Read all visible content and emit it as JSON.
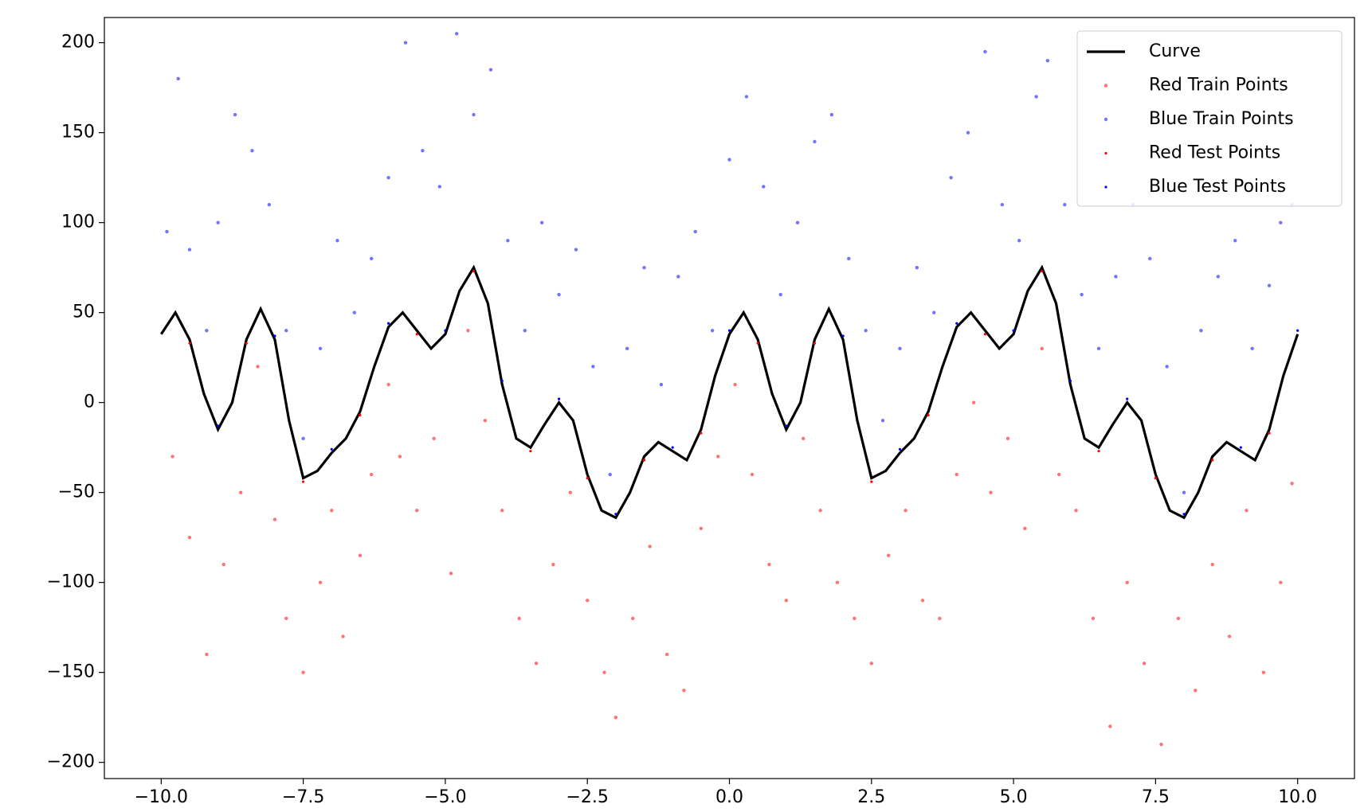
{
  "chart_data": {
    "type": "scatter",
    "xlim": [
      -11,
      11
    ],
    "ylim": [
      -209,
      214
    ],
    "xticks": [
      {
        "value": -10,
        "label": "−10.0"
      },
      {
        "value": -7.5,
        "label": "−7.5"
      },
      {
        "value": -5,
        "label": "−5.0"
      },
      {
        "value": -2.5,
        "label": "−2.5"
      },
      {
        "value": 0,
        "label": "0.0"
      },
      {
        "value": 2.5,
        "label": "2.5"
      },
      {
        "value": 5,
        "label": "5.0"
      },
      {
        "value": 7.5,
        "label": "7.5"
      },
      {
        "value": 10,
        "label": "10.0"
      }
    ],
    "yticks": [
      {
        "value": -200,
        "label": "−200"
      },
      {
        "value": -150,
        "label": "−150"
      },
      {
        "value": -100,
        "label": "−100"
      },
      {
        "value": -50,
        "label": "−50"
      },
      0,
      50,
      100,
      150,
      200
    ],
    "legend": "upper right",
    "series": [
      {
        "name": "Curve",
        "kind": "line",
        "color": "#000000",
        "x": [
          -10,
          -9.75,
          -9.5,
          -9.25,
          -9,
          -8.75,
          -8.5,
          -8.25,
          -8,
          -7.75,
          -7.5,
          -7.25,
          -7,
          -6.75,
          -6.5,
          -6.25,
          -6,
          -5.75,
          -5.5,
          -5.25,
          -5,
          -4.75,
          -4.5,
          -4.25,
          -4,
          -3.75,
          -3.5,
          -3.25,
          -3,
          -2.75,
          -2.5,
          -2.25,
          -2,
          -1.75,
          -1.5,
          -1.25,
          -1,
          -0.75,
          -0.5,
          -0.25,
          0,
          0.25,
          0.5,
          0.75,
          1,
          1.25,
          1.5,
          1.75,
          2,
          2.25,
          2.5,
          2.75,
          3,
          3.25,
          3.5,
          3.75,
          4,
          4.25,
          4.5,
          4.75,
          5,
          5.25,
          5.5,
          5.75,
          6,
          6.25,
          6.5,
          6.75,
          7,
          7.25,
          7.5,
          7.75,
          8,
          8.25,
          8.5,
          8.75,
          9,
          9.25,
          9.5,
          9.75,
          10
        ],
        "values": [
          38,
          50,
          35,
          5,
          -15,
          0,
          35,
          52,
          35,
          -10,
          -42,
          -38,
          -28,
          -20,
          -5,
          20,
          42,
          50,
          40,
          30,
          38,
          62,
          75,
          55,
          10,
          -20,
          -25,
          -12,
          0,
          -10,
          -40,
          -60,
          -64,
          -50,
          -30,
          -22,
          -27,
          -32,
          -15,
          15,
          38,
          50,
          35,
          5,
          -15,
          0,
          35,
          52,
          35,
          -10,
          -42,
          -38,
          -28,
          -20,
          -5,
          20,
          42,
          50,
          40,
          30,
          38,
          62,
          75,
          55,
          10,
          -20,
          -25,
          -12,
          0,
          -10,
          -40,
          -60,
          -64,
          -50,
          -30,
          -22,
          -27,
          -32,
          -15,
          15,
          38
        ]
      },
      {
        "name": "Red Train Points",
        "kind": "scatter",
        "color": "#ff0000",
        "alpha": 0.55,
        "size": 2.2,
        "x": [
          -9.8,
          -9.5,
          -9.2,
          -8.9,
          -8.6,
          -8.3,
          -8.0,
          -7.8,
          -7.5,
          -7.2,
          -7.0,
          -6.8,
          -6.5,
          -6.3,
          -6.0,
          -5.8,
          -5.5,
          -5.2,
          -4.9,
          -4.6,
          -4.3,
          -4.0,
          -3.7,
          -3.4,
          -3.1,
          -2.8,
          -2.5,
          -2.2,
          -2.0,
          -1.7,
          -1.4,
          -1.1,
          -0.8,
          -0.5,
          -0.2,
          0.1,
          0.4,
          0.7,
          1.0,
          1.3,
          1.6,
          1.9,
          2.2,
          2.5,
          2.8,
          3.1,
          3.4,
          3.7,
          4.0,
          4.3,
          4.6,
          4.9,
          5.2,
          5.5,
          5.8,
          6.1,
          6.4,
          6.7,
          7.0,
          7.3,
          7.6,
          7.9,
          8.2,
          8.5,
          8.8,
          9.1,
          9.4,
          9.7,
          9.9
        ],
        "values": [
          -30,
          -75,
          -140,
          -90,
          -50,
          20,
          -65,
          -120,
          -150,
          -100,
          -60,
          -130,
          -85,
          -40,
          10,
          -30,
          -60,
          -20,
          -95,
          40,
          -10,
          -60,
          -120,
          -145,
          -90,
          -50,
          -110,
          -150,
          -175,
          -120,
          -80,
          -140,
          -160,
          -70,
          -30,
          10,
          -40,
          -90,
          -110,
          -20,
          -60,
          -100,
          -120,
          -145,
          -85,
          -60,
          -110,
          -120,
          -40,
          0,
          -50,
          -20,
          -70,
          30,
          -40,
          -60,
          -120,
          -180,
          -100,
          -145,
          -190,
          -120,
          -160,
          -90,
          -130,
          -60,
          -150,
          -100,
          -45
        ]
      },
      {
        "name": "Blue Train Points",
        "kind": "scatter",
        "color": "#0000ff",
        "alpha": 0.55,
        "size": 2.2,
        "x": [
          -9.9,
          -9.7,
          -9.5,
          -9.2,
          -9.0,
          -8.7,
          -8.4,
          -8.1,
          -7.8,
          -7.5,
          -7.2,
          -6.9,
          -6.6,
          -6.3,
          -6.0,
          -5.7,
          -5.4,
          -5.1,
          -4.8,
          -4.5,
          -4.2,
          -3.9,
          -3.6,
          -3.3,
          -3.0,
          -2.7,
          -2.4,
          -2.1,
          -1.8,
          -1.5,
          -1.2,
          -0.9,
          -0.6,
          -0.3,
          0.0,
          0.3,
          0.6,
          0.9,
          1.2,
          1.5,
          1.8,
          2.1,
          2.4,
          2.7,
          3.0,
          3.3,
          3.6,
          3.9,
          4.2,
          4.5,
          4.8,
          5.1,
          5.4,
          5.6,
          5.9,
          6.2,
          6.5,
          6.8,
          7.1,
          7.4,
          7.7,
          8.0,
          8.3,
          8.6,
          8.9,
          9.2,
          9.5,
          9.7,
          9.9
        ],
        "values": [
          95,
          180,
          85,
          40,
          100,
          160,
          140,
          110,
          40,
          -20,
          30,
          90,
          50,
          80,
          125,
          200,
          140,
          120,
          205,
          160,
          185,
          90,
          40,
          100,
          60,
          85,
          20,
          -40,
          30,
          75,
          10,
          70,
          95,
          40,
          135,
          170,
          120,
          60,
          100,
          145,
          160,
          80,
          40,
          -10,
          30,
          75,
          50,
          125,
          150,
          195,
          110,
          90,
          170,
          190,
          110,
          60,
          30,
          70,
          110,
          80,
          20,
          -50,
          40,
          70,
          90,
          30,
          65,
          100,
          110
        ]
      },
      {
        "name": "Red Test Points",
        "kind": "scatter",
        "color": "#ff0000",
        "alpha": 1,
        "size": 1.6,
        "x": [
          -9.5,
          -8.5,
          -7.5,
          -6.5,
          -5.5,
          -4.5,
          -3.5,
          -2.5,
          -1.5,
          -0.5,
          0.5,
          1.5,
          2.5,
          3.5,
          4.5,
          5.5,
          6.5,
          7.5,
          8.5,
          9.5
        ],
        "values": [
          33,
          33,
          -44,
          -7,
          38,
          73,
          -27,
          -42,
          -32,
          -17,
          33,
          33,
          -44,
          -7,
          38,
          73,
          -27,
          -42,
          -32,
          -17
        ]
      },
      {
        "name": "Blue Test Points",
        "kind": "scatter",
        "color": "#0000ff",
        "alpha": 1,
        "size": 1.6,
        "x": [
          -9,
          -8,
          -7,
          -6,
          -5,
          -4,
          -3,
          -2,
          -1,
          0,
          1,
          2,
          3,
          4,
          5,
          6,
          7,
          8,
          9,
          10
        ],
        "values": [
          -13,
          37,
          -26,
          44,
          40,
          12,
          2,
          -62,
          -25,
          40,
          -13,
          37,
          -26,
          44,
          40,
          12,
          2,
          -62,
          -25,
          40
        ]
      }
    ]
  }
}
